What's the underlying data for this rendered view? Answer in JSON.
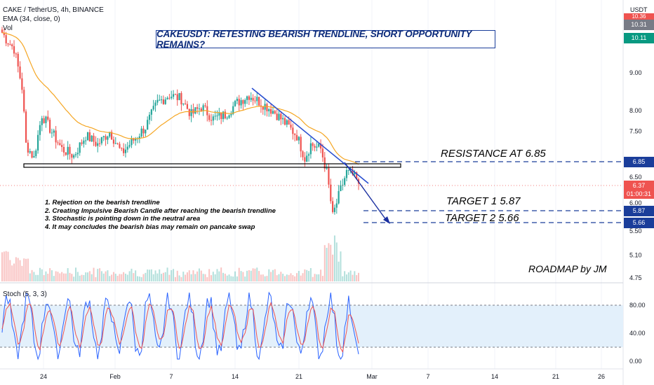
{
  "header": {
    "symbol": "CAKE / TetherUS, 4h, BINANCE",
    "ema": "EMA (34, close, 0)",
    "vol": "Vol",
    "currency": "USDT"
  },
  "title": "CAKEUSDT: RETESTING BEARISH TRENDLINE, SHORT OPPORTUNITY REMAINS?",
  "annotations": {
    "resistance": "RESISTANCE AT 6.85",
    "target1": "TARGET 1  5.87",
    "target2": "TARGET 2  5.66",
    "roadmap": "ROADMAP by JM"
  },
  "notes": [
    "1. Rejection on the bearish trendline",
    "2. Creating Impulsive Bearish Candle after reaching the bearish trendline",
    "3. Stochastic is pointing down in the neutral area",
    "4. It may concludes the bearish bias may remain on pancake swap"
  ],
  "price_tags": {
    "top_red": "10.36",
    "gray": "10.31",
    "green": "10.11",
    "resistance": "6.85",
    "current": "6.37",
    "countdown": "01:00:31",
    "t1": "5.87",
    "t2": "5.66"
  },
  "colors": {
    "up": "#26a69a",
    "down": "#ef5350",
    "ema": "#f5a623",
    "trendline": "#2a4fd0",
    "level_line": "#1a3d9a",
    "stoch_k": "#2962ff",
    "stoch_d": "#ef5350",
    "band": "#e3f0fb"
  },
  "chart_data": [
    {
      "type": "candlestick",
      "title": "CAKE / TetherUS, 4h, BINANCE",
      "x_ticks": [
        "24",
        "Feb",
        "7",
        "14",
        "21",
        "Mar",
        "7",
        "14",
        "21",
        "26"
      ],
      "y_ticks": [
        4.75,
        5.1,
        5.5,
        6.0,
        6.5,
        7.5,
        8.0,
        9.0
      ],
      "y_scale": "log",
      "ylim": [
        4.65,
        11.3
      ],
      "levels": {
        "resistance": 6.85,
        "target_1": 5.87,
        "target_2": 5.66
      },
      "price_anchors": [
        [
          0,
          10.2
        ],
        [
          2,
          10.0
        ],
        [
          6,
          9.7
        ],
        [
          10,
          8.6
        ],
        [
          12,
          7.2
        ],
        [
          16,
          6.9
        ],
        [
          20,
          7.9
        ],
        [
          26,
          7.4
        ],
        [
          30,
          7.1
        ],
        [
          36,
          6.95
        ],
        [
          42,
          7.4
        ],
        [
          48,
          7.2
        ],
        [
          54,
          7.5
        ],
        [
          60,
          7.0
        ],
        [
          66,
          7.3
        ],
        [
          72,
          7.6
        ],
        [
          78,
          8.2
        ],
        [
          84,
          8.4
        ],
        [
          90,
          8.3
        ],
        [
          95,
          7.9
        ],
        [
          100,
          8.1
        ],
        [
          106,
          7.8
        ],
        [
          112,
          7.9
        ],
        [
          118,
          8.2
        ],
        [
          124,
          8.4
        ],
        [
          130,
          8.2
        ],
        [
          136,
          8.0
        ],
        [
          142,
          7.7
        ],
        [
          148,
          7.4
        ],
        [
          152,
          6.9
        ],
        [
          155,
          7.2
        ],
        [
          160,
          7.1
        ],
        [
          163,
          6.6
        ],
        [
          166,
          5.75
        ],
        [
          170,
          6.25
        ],
        [
          173,
          6.6
        ],
        [
          176,
          6.55
        ],
        [
          179,
          6.37
        ]
      ]
    },
    {
      "type": "line",
      "title": "Stoch (5, 3, 3)",
      "y_ticks": [
        0.0,
        40.0,
        80.0
      ],
      "ylim": [
        -8,
        110
      ],
      "bands": [
        20,
        80
      ]
    }
  ]
}
